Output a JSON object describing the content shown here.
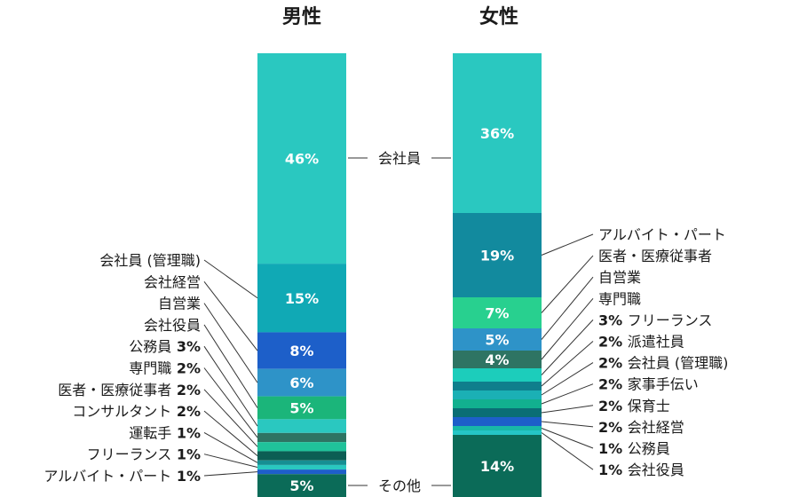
{
  "chart_data": {
    "type": "bar",
    "stacked": true,
    "normalized": "percent",
    "series": [
      {
        "name": "男性",
        "segments": [
          {
            "label": "会社員",
            "value": 46,
            "color": "#2ac8c0"
          },
          {
            "label": "会社員 (管理職)",
            "value": 15,
            "color": "#10a9b5"
          },
          {
            "label": "会社経営",
            "value": 8,
            "color": "#1d5fc9"
          },
          {
            "label": "自営業",
            "value": 6,
            "color": "#2e93c8"
          },
          {
            "label": "会社役員",
            "value": 5,
            "color": "#1bb57a"
          },
          {
            "label": "公務員",
            "value": 3,
            "color": "#2ac8c0"
          },
          {
            "label": "専門職",
            "value": 2,
            "color": "#2e7463"
          },
          {
            "label": "医者・医療従事者",
            "value": 2,
            "color": "#20c29a"
          },
          {
            "label": "コンサルタント",
            "value": 2,
            "color": "#0c5e54"
          },
          {
            "label": "運転手",
            "value": 1,
            "color": "#168f93"
          },
          {
            "label": "フリーランス",
            "value": 1,
            "color": "#2ac8c0"
          },
          {
            "label": "アルバイト・パート",
            "value": 1,
            "color": "#1d5fc9"
          },
          {
            "label": "その他",
            "value": 5,
            "color": "#0b6b58"
          }
        ]
      },
      {
        "name": "女性",
        "segments": [
          {
            "label": "会社員",
            "value": 36,
            "color": "#2ac8c0"
          },
          {
            "label": "アルバイト・パート",
            "value": 19,
            "color": "#128a9e"
          },
          {
            "label": "医者・医療従事者",
            "value": 7,
            "color": "#28d08f"
          },
          {
            "label": "自営業",
            "value": 5,
            "color": "#2e93c8"
          },
          {
            "label": "専門職",
            "value": 4,
            "color": "#2e7463"
          },
          {
            "label": "フリーランス",
            "value": 3,
            "color": "#1ccdbb"
          },
          {
            "label": "派遣社員",
            "value": 2,
            "color": "#0f7f8c"
          },
          {
            "label": "会社員 (管理職)",
            "value": 2,
            "color": "#1bb0b5"
          },
          {
            "label": "家事手伝い",
            "value": 2,
            "color": "#12b08f"
          },
          {
            "label": "保育士",
            "value": 2,
            "color": "#0a6e74"
          },
          {
            "label": "会社経営",
            "value": 2,
            "color": "#1d5fc9"
          },
          {
            "label": "公務員",
            "value": 1,
            "color": "#18b8a8"
          },
          {
            "label": "会社役員",
            "value": 1,
            "color": "#25c6c6"
          },
          {
            "label": "その他",
            "value": 14,
            "color": "#0b6b58"
          }
        ]
      }
    ],
    "center_labels": [
      "会社員",
      "その他"
    ],
    "male_side_labels": [
      {
        "text": "会社員 (管理職)",
        "pct": ""
      },
      {
        "text": "会社経営",
        "pct": ""
      },
      {
        "text": "自営業",
        "pct": ""
      },
      {
        "text": "会社役員",
        "pct": ""
      },
      {
        "text": "公務員",
        "pct": "3%"
      },
      {
        "text": "専門職",
        "pct": "2%"
      },
      {
        "text": "医者・医療従事者",
        "pct": "2%"
      },
      {
        "text": "コンサルタント",
        "pct": "2%"
      },
      {
        "text": "運転手",
        "pct": "1%"
      },
      {
        "text": "フリーランス",
        "pct": "1%"
      },
      {
        "text": "アルバイト・パート",
        "pct": "1%"
      }
    ],
    "female_side_labels": [
      {
        "text": "アルバイト・パート",
        "pct": ""
      },
      {
        "text": "医者・医療従事者",
        "pct": ""
      },
      {
        "text": "自営業",
        "pct": ""
      },
      {
        "text": "専門職",
        "pct": ""
      },
      {
        "text": "フリーランス",
        "pct": "3%"
      },
      {
        "text": "派遣社員",
        "pct": "2%"
      },
      {
        "text": "会社員 (管理職)",
        "pct": "2%"
      },
      {
        "text": "家事手伝い",
        "pct": "2%"
      },
      {
        "text": "保育士",
        "pct": "2%"
      },
      {
        "text": "会社経営",
        "pct": "2%"
      },
      {
        "text": "公務員",
        "pct": "1%"
      },
      {
        "text": "会社役員",
        "pct": "1%"
      }
    ]
  }
}
